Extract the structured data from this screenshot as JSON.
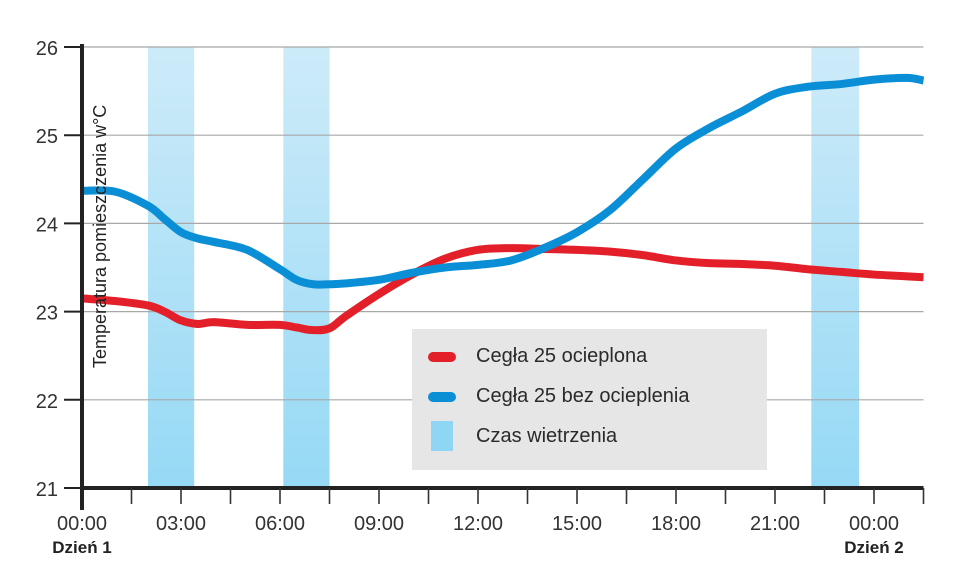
{
  "chart_data": {
    "type": "line",
    "title": "",
    "xlabel": "",
    "ylabel": "Temperatura pomieszczenia w°C",
    "ylim": [
      21,
      26
    ],
    "y_ticks": [
      21,
      22,
      23,
      24,
      25,
      26
    ],
    "x_tick_labels": [
      "00:00",
      "03:00",
      "06:00",
      "09:00",
      "12:00",
      "15:00",
      "18:00",
      "21:00",
      "00:00"
    ],
    "x_tick_hours": [
      0,
      3,
      6,
      9,
      12,
      15,
      18,
      21,
      24
    ],
    "x_range_hours": [
      0,
      25.5
    ],
    "day_labels": [
      {
        "label": "Dzień 1",
        "hour": 0
      },
      {
        "label": "Dzień 2",
        "hour": 24
      }
    ],
    "grid": true,
    "legend_position": "inside-lower-right",
    "series": [
      {
        "name": "Cegła 25 ocieplona",
        "color": "#e3202a",
        "x": [
          0,
          1,
          2,
          2.5,
          3,
          3.5,
          4,
          5,
          6,
          6.5,
          7,
          7.5,
          8,
          9,
          10,
          11,
          12,
          13,
          14,
          15,
          16,
          17,
          18,
          19,
          20,
          21,
          22,
          23,
          24,
          25,
          25.5
        ],
        "values": [
          23.15,
          23.12,
          23.07,
          23.0,
          22.9,
          22.86,
          22.88,
          22.85,
          22.85,
          22.82,
          22.79,
          22.81,
          22.95,
          23.2,
          23.42,
          23.6,
          23.7,
          23.72,
          23.71,
          23.7,
          23.68,
          23.64,
          23.58,
          23.55,
          23.54,
          23.52,
          23.48,
          23.45,
          23.42,
          23.4,
          23.39
        ]
      },
      {
        "name": "Cegła 25 bez ocieplenia",
        "color": "#0a8fd6",
        "x": [
          0,
          1,
          2,
          2.5,
          3,
          3.5,
          4,
          5,
          6,
          6.5,
          7,
          7.5,
          8,
          9,
          10,
          11,
          12,
          13,
          14,
          15,
          16,
          17,
          18,
          19,
          20,
          21,
          22,
          23,
          24,
          25,
          25.5
        ],
        "values": [
          24.37,
          24.36,
          24.2,
          24.05,
          23.9,
          23.83,
          23.79,
          23.7,
          23.48,
          23.36,
          23.31,
          23.31,
          23.32,
          23.36,
          23.44,
          23.5,
          23.53,
          23.58,
          23.72,
          23.9,
          24.15,
          24.5,
          24.85,
          25.08,
          25.27,
          25.47,
          25.55,
          25.58,
          25.63,
          25.65,
          25.62
        ]
      }
    ],
    "bands": {
      "name": "Czas wietrzenia",
      "color": "#8fd6f4",
      "ranges_hours": [
        [
          2.0,
          3.4
        ],
        [
          6.1,
          7.5
        ],
        [
          22.1,
          23.55
        ]
      ]
    }
  },
  "legend": {
    "items": [
      {
        "label": "Cegła 25 ocieplona",
        "color": "#e3202a"
      },
      {
        "label": "Cegła 25 bez ocieplenia",
        "color": "#0a8fd6"
      },
      {
        "label": "Czas wietrzenia",
        "color": "#8fd6f4"
      }
    ]
  }
}
